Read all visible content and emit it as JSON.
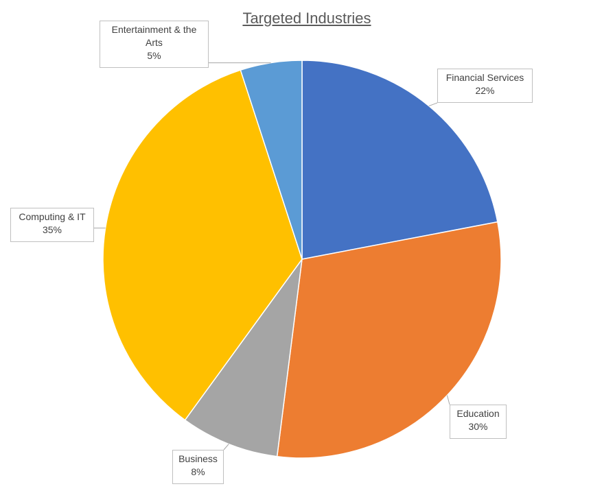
{
  "chart_data": {
    "type": "pie",
    "title": "Targeted Industries",
    "slices": [
      {
        "label": "Financial Services",
        "value": 22,
        "display": "22%",
        "color": "#4472C4"
      },
      {
        "label": "Education",
        "value": 30,
        "display": "30%",
        "color": "#ED7D31"
      },
      {
        "label": "Business",
        "value": 8,
        "display": "8%",
        "color": "#A5A5A5"
      },
      {
        "label": "Computing & IT",
        "value": 35,
        "display": "35%",
        "color": "#FFC000"
      },
      {
        "label": "Entertainment & the Arts",
        "value": 5,
        "display": "5%",
        "color": "#5B9BD5"
      }
    ],
    "start_angle": "12 o'clock",
    "direction": "clockwise",
    "data_labels": "callouts with category name and percentage",
    "legend": "none"
  }
}
